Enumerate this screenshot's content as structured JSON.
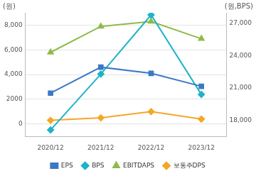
{
  "chart_data": {
    "type": "line",
    "ylabel": "(원)",
    "y2label": "(원,BPS)",
    "categories": [
      "2020/12",
      "2021/12",
      "2022/12",
      "2023/12"
    ],
    "series": [
      {
        "name": "EPS",
        "color": "#3b78c6",
        "marker": "square",
        "values": [
          2500,
          4600,
          4100,
          3050
        ]
      },
      {
        "name": "BPS",
        "color": "#1fb3c9",
        "marker": "diamond",
        "axis": "y2",
        "values": [
          17100,
          22300,
          27800,
          20400
        ]
      },
      {
        "name": "EBITDAPS",
        "color": "#8fba4a",
        "marker": "triangle",
        "values": [
          5800,
          7900,
          8300,
          6900
        ]
      },
      {
        "name": "보통주DPS",
        "color": "#f4a72a",
        "marker": "diamond",
        "values": [
          300,
          500,
          1000,
          400
        ]
      }
    ],
    "ylim": [
      -1000,
      9000
    ],
    "yticks": [
      0,
      2000,
      {
        "value": 4000,
        "label": "4,000"
      },
      {
        "value": 6000,
        "label": "6,000"
      },
      {
        "value": 8000,
        "label": "8,000"
      }
    ],
    "y2lim": [
      16500,
      28000
    ],
    "y2ticks": [
      {
        "value": 18000,
        "label": "18,000"
      },
      {
        "value": 21000,
        "label": "21,000"
      },
      {
        "value": 24000,
        "label": "24,000"
      },
      {
        "value": 27000,
        "label": "27,000"
      }
    ],
    "grid": true,
    "legend": "bottom"
  }
}
